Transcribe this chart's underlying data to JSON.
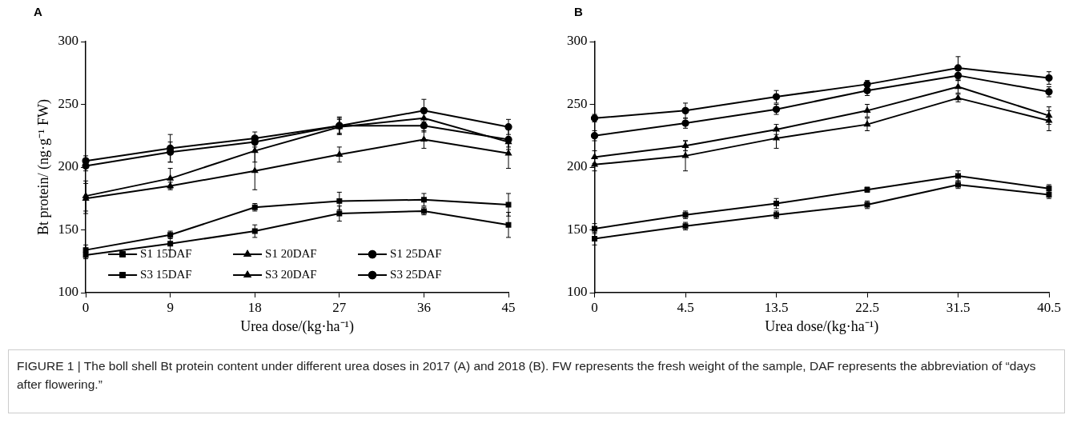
{
  "chart_data": [
    {
      "type": "line",
      "title": "A",
      "xlabel": "Urea dose/(kg·ha⁻¹)",
      "ylabel": "Bt protein/ (ng·g⁻¹ FW)",
      "categories": [
        "0",
        "9",
        "18",
        "27",
        "36",
        "45"
      ],
      "ylim": [
        100,
        300
      ],
      "yticks": [
        100,
        150,
        200,
        250,
        300
      ],
      "grid": false,
      "legend": "bottom",
      "line_style": "solid",
      "series": [
        {
          "name": "S1 15DAF",
          "color": "#000000",
          "marker": "square",
          "values": [
            134,
            146,
            168,
            173,
            174,
            170
          ],
          "errors": [
            4,
            3,
            3,
            7,
            5,
            9
          ]
        },
        {
          "name": "S1 20DAF",
          "color": "#000000",
          "marker": "triangle",
          "values": [
            177,
            191,
            213,
            232,
            239,
            220
          ],
          "errors": [
            12,
            8,
            9,
            6,
            6,
            4
          ]
        },
        {
          "name": "S1 25DAF",
          "color": "#000000",
          "marker": "circle",
          "values": [
            205,
            215,
            223,
            233,
            245,
            232
          ],
          "errors": [
            4,
            11,
            5,
            6,
            9,
            6
          ]
        },
        {
          "name": "S3 15DAF",
          "color": "#000000",
          "marker": "square",
          "values": [
            130,
            139,
            149,
            163,
            165,
            154
          ],
          "errors": [
            3,
            5,
            5,
            6,
            3,
            10
          ]
        },
        {
          "name": "S3 20DAF",
          "color": "#000000",
          "marker": "triangle",
          "values": [
            175,
            185,
            197,
            210,
            222,
            211
          ],
          "errors": [
            12,
            3,
            15,
            6,
            7,
            12
          ]
        },
        {
          "name": "S3 25DAF",
          "color": "#000000",
          "marker": "circle",
          "values": [
            201,
            212,
            220,
            233,
            233,
            222
          ],
          "errors": [
            4,
            8,
            4,
            7,
            5,
            8
          ]
        }
      ],
      "annotations": [
        "FIGURE 1 | The boll shell Bt protein content under different urea doses in 2017 (A) and 2018 (B). FW represents the fresh weight of the sample, DAF represents the abbreviation of “days after flowering.”"
      ]
    },
    {
      "type": "line",
      "title": "B",
      "xlabel": "Urea dose/(kg·ha⁻¹)",
      "categories": [
        "0",
        "4.5",
        "13.5",
        "22.5",
        "31.5",
        "40.5"
      ],
      "ylim": [
        100,
        300
      ],
      "yticks": [
        100,
        150,
        200,
        250,
        300
      ],
      "grid": false,
      "legend": false,
      "line_style": "solid",
      "series": [
        {
          "color": "#000000",
          "marker": "square",
          "values": [
            151,
            162,
            171,
            182,
            193,
            183
          ],
          "errors": [
            4,
            3,
            4,
            2,
            4,
            3
          ]
        },
        {
          "color": "#000000",
          "marker": "triangle",
          "values": [
            208,
            217,
            230,
            245,
            264,
            241
          ],
          "errors": [
            5,
            4,
            4,
            5,
            5,
            7
          ]
        },
        {
          "color": "#000000",
          "marker": "circle",
          "values": [
            239,
            245,
            256,
            266,
            279,
            271
          ],
          "errors": [
            3,
            6,
            5,
            3,
            9,
            5
          ]
        },
        {
          "color": "#000000",
          "marker": "square",
          "values": [
            143,
            153,
            162,
            170,
            186,
            178
          ],
          "errors": [
            5,
            3,
            3,
            3,
            3,
            3
          ]
        },
        {
          "color": "#000000",
          "marker": "triangle",
          "values": [
            202,
            209,
            223,
            234,
            255,
            237
          ],
          "errors": [
            5,
            12,
            8,
            5,
            3,
            8
          ]
        },
        {
          "color": "#000000",
          "marker": "circle",
          "values": [
            225,
            235,
            246,
            261,
            273,
            260
          ],
          "errors": [
            4,
            4,
            4,
            4,
            4,
            4
          ]
        }
      ]
    }
  ]
}
